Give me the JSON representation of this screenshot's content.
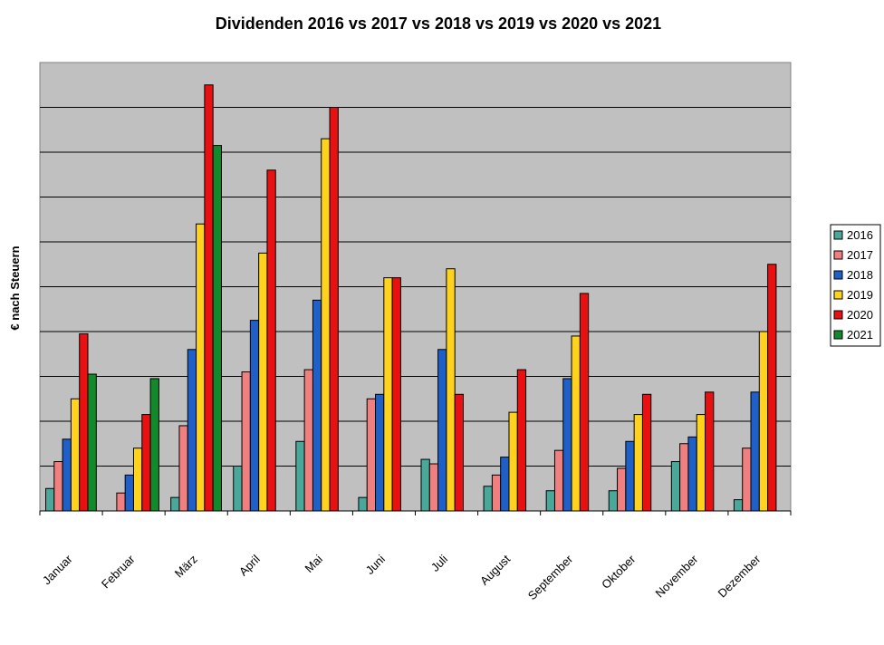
{
  "chart_data": {
    "type": "bar",
    "title": "Dividenden 2016 vs 2017 vs 2018 vs 2019 vs 2020 vs 2021",
    "xlabel": "",
    "ylabel": "€ nach Steuern",
    "ylim": [
      0,
      10
    ],
    "grid": true,
    "legend_position": "right",
    "plot_background": "#c0c0c0",
    "categories": [
      "Januar",
      "Februar",
      "März",
      "April",
      "Mai",
      "Juni",
      "Juli",
      "August",
      "September",
      "Oktober",
      "November",
      "Dezember"
    ],
    "series": [
      {
        "name": "2016",
        "color": "#4aa89a",
        "values": [
          0.5,
          0,
          0.3,
          1.0,
          1.55,
          0.3,
          1.15,
          0.55,
          0.45,
          0.45,
          1.1,
          0.25
        ]
      },
      {
        "name": "2017",
        "color": "#f08080",
        "values": [
          1.1,
          0.4,
          1.9,
          3.1,
          3.15,
          2.5,
          1.05,
          0.8,
          1.35,
          0.95,
          1.5,
          1.4
        ]
      },
      {
        "name": "2018",
        "color": "#1e5fc8",
        "values": [
          1.6,
          0.8,
          3.6,
          4.25,
          4.7,
          2.6,
          3.6,
          1.2,
          2.95,
          1.55,
          1.65,
          2.65
        ]
      },
      {
        "name": "2019",
        "color": "#ffd21e",
        "values": [
          2.5,
          1.4,
          6.4,
          5.75,
          8.3,
          5.2,
          5.4,
          2.2,
          3.9,
          2.15,
          2.15,
          4.0
        ]
      },
      {
        "name": "2020",
        "color": "#e81010",
        "values": [
          3.95,
          2.15,
          9.5,
          7.6,
          9.0,
          5.2,
          2.6,
          3.15,
          4.85,
          2.6,
          2.65,
          5.5
        ]
      },
      {
        "name": "2021",
        "color": "#128a2c",
        "values": [
          3.05,
          2.95,
          8.15,
          0,
          0,
          0,
          0,
          0,
          0,
          0,
          0,
          0
        ]
      }
    ]
  }
}
